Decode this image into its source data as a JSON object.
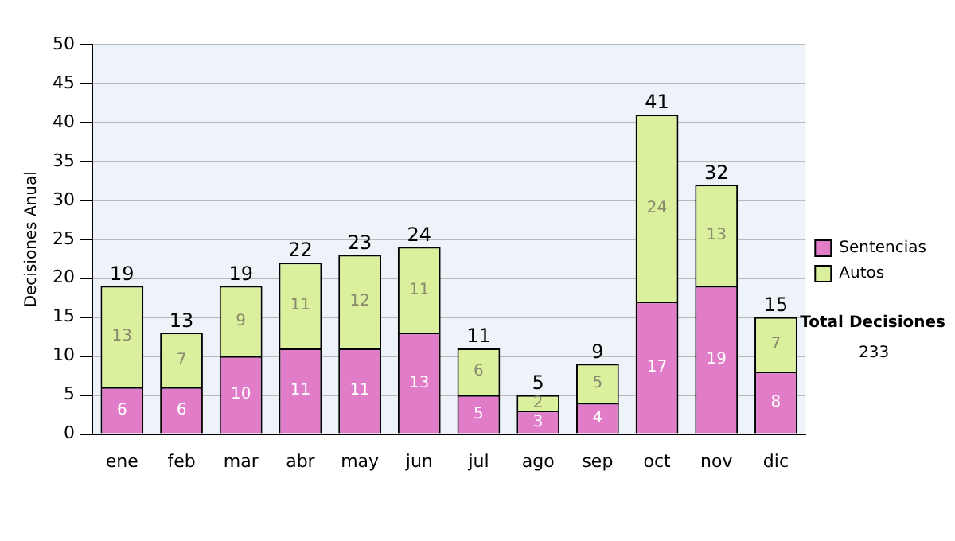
{
  "chart_data": {
    "type": "bar",
    "stacked": true,
    "ylabel": "Decisiones Anual",
    "categories": [
      "ene",
      "feb",
      "mar",
      "abr",
      "may",
      "jun",
      "jul",
      "ago",
      "sep",
      "oct",
      "nov",
      "dic"
    ],
    "series": [
      {
        "name": "Sentencias",
        "color": "#e07cc8",
        "values": [
          6,
          6,
          10,
          11,
          11,
          13,
          5,
          3,
          4,
          17,
          19,
          8
        ]
      },
      {
        "name": "Autos",
        "color": "#daf09c",
        "values": [
          13,
          7,
          9,
          11,
          12,
          11,
          6,
          2,
          5,
          24,
          13,
          7
        ]
      }
    ],
    "totals": [
      "19",
      "13",
      "19",
      "22",
      "23",
      "24",
      "11",
      "5",
      "9",
      "41",
      "32",
      "15"
    ],
    "data_labels": true,
    "ylim": [
      0,
      50
    ],
    "yticks": [
      0,
      5,
      10,
      15,
      20,
      25,
      30,
      35,
      40,
      45,
      50
    ],
    "grid": "y",
    "legend": "right",
    "annotations": [
      "Total Decisiones",
      "233"
    ]
  }
}
